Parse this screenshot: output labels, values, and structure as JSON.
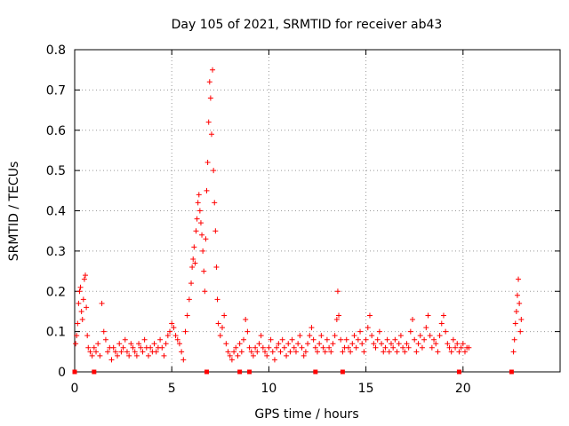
{
  "chart_data": {
    "type": "scatter",
    "title": "Day 105 of 2021, SRMTID for receiver ab43",
    "xlabel": "GPS time / hours",
    "ylabel": "SRMTID / TECUs",
    "xlim": [
      0,
      25
    ],
    "ylim": [
      0,
      0.8
    ],
    "grid": true,
    "marker": "+",
    "color": "#ff0000",
    "x_ticks": [
      0,
      5,
      10,
      15,
      20
    ],
    "x_tick_labels": [
      "0",
      "5",
      "10",
      "15",
      "20"
    ],
    "y_ticks": [
      0,
      0.1,
      0.2,
      0.3,
      0.4,
      0.5,
      0.6,
      0.7,
      0.8
    ],
    "y_tick_labels": [
      "0",
      "0.1",
      "0.2",
      "0.3",
      "0.4",
      "0.5",
      "0.6",
      "0.7",
      "0.8"
    ],
    "zero_markers_x": [
      0.0,
      1.0,
      6.8,
      8.5,
      9.0,
      12.4,
      13.8,
      19.8,
      22.5
    ],
    "series": [
      {
        "name": "SRMTID",
        "points": [
          [
            0.05,
            0.07
          ],
          [
            0.1,
            0.09
          ],
          [
            0.15,
            0.12
          ],
          [
            0.2,
            0.17
          ],
          [
            0.25,
            0.2
          ],
          [
            0.3,
            0.21
          ],
          [
            0.35,
            0.15
          ],
          [
            0.4,
            0.13
          ],
          [
            0.45,
            0.18
          ],
          [
            0.5,
            0.23
          ],
          [
            0.55,
            0.24
          ],
          [
            0.6,
            0.16
          ],
          [
            0.65,
            0.09
          ],
          [
            0.7,
            0.06
          ],
          [
            0.8,
            0.05
          ],
          [
            0.9,
            0.04
          ],
          [
            1.0,
            0.06
          ],
          [
            1.1,
            0.05
          ],
          [
            1.2,
            0.07
          ],
          [
            1.3,
            0.04
          ],
          [
            1.4,
            0.17
          ],
          [
            1.5,
            0.1
          ],
          [
            1.6,
            0.08
          ],
          [
            1.7,
            0.05
          ],
          [
            1.8,
            0.06
          ],
          [
            1.9,
            0.03
          ],
          [
            2.0,
            0.06
          ],
          [
            2.1,
            0.05
          ],
          [
            2.2,
            0.04
          ],
          [
            2.3,
            0.07
          ],
          [
            2.4,
            0.05
          ],
          [
            2.5,
            0.06
          ],
          [
            2.6,
            0.08
          ],
          [
            2.7,
            0.05
          ],
          [
            2.8,
            0.04
          ],
          [
            2.9,
            0.07
          ],
          [
            3.0,
            0.06
          ],
          [
            3.1,
            0.05
          ],
          [
            3.2,
            0.04
          ],
          [
            3.3,
            0.07
          ],
          [
            3.4,
            0.06
          ],
          [
            3.5,
            0.05
          ],
          [
            3.6,
            0.08
          ],
          [
            3.7,
            0.06
          ],
          [
            3.8,
            0.04
          ],
          [
            3.9,
            0.06
          ],
          [
            4.0,
            0.05
          ],
          [
            4.1,
            0.07
          ],
          [
            4.2,
            0.05
          ],
          [
            4.3,
            0.06
          ],
          [
            4.4,
            0.08
          ],
          [
            4.5,
            0.06
          ],
          [
            4.6,
            0.04
          ],
          [
            4.7,
            0.07
          ],
          [
            4.8,
            0.09
          ],
          [
            4.9,
            0.1
          ],
          [
            5.0,
            0.12
          ],
          [
            5.1,
            0.11
          ],
          [
            5.2,
            0.09
          ],
          [
            5.3,
            0.08
          ],
          [
            5.4,
            0.07
          ],
          [
            5.5,
            0.05
          ],
          [
            5.6,
            0.03
          ],
          [
            5.7,
            0.1
          ],
          [
            5.8,
            0.14
          ],
          [
            5.9,
            0.18
          ],
          [
            6.0,
            0.22
          ],
          [
            6.05,
            0.26
          ],
          [
            6.1,
            0.28
          ],
          [
            6.15,
            0.31
          ],
          [
            6.2,
            0.27
          ],
          [
            6.25,
            0.35
          ],
          [
            6.3,
            0.38
          ],
          [
            6.35,
            0.42
          ],
          [
            6.4,
            0.44
          ],
          [
            6.45,
            0.4
          ],
          [
            6.5,
            0.37
          ],
          [
            6.55,
            0.34
          ],
          [
            6.6,
            0.3
          ],
          [
            6.65,
            0.25
          ],
          [
            6.7,
            0.2
          ],
          [
            6.75,
            0.33
          ],
          [
            6.8,
            0.45
          ],
          [
            6.85,
            0.52
          ],
          [
            6.9,
            0.62
          ],
          [
            6.95,
            0.72
          ],
          [
            7.0,
            0.68
          ],
          [
            7.05,
            0.59
          ],
          [
            7.1,
            0.75
          ],
          [
            7.15,
            0.5
          ],
          [
            7.2,
            0.42
          ],
          [
            7.25,
            0.35
          ],
          [
            7.3,
            0.26
          ],
          [
            7.35,
            0.18
          ],
          [
            7.4,
            0.12
          ],
          [
            7.5,
            0.09
          ],
          [
            7.6,
            0.11
          ],
          [
            7.7,
            0.14
          ],
          [
            7.8,
            0.07
          ],
          [
            7.9,
            0.05
          ],
          [
            8.0,
            0.04
          ],
          [
            8.1,
            0.03
          ],
          [
            8.2,
            0.05
          ],
          [
            8.3,
            0.06
          ],
          [
            8.4,
            0.04
          ],
          [
            8.5,
            0.07
          ],
          [
            8.6,
            0.05
          ],
          [
            8.7,
            0.08
          ],
          [
            8.8,
            0.13
          ],
          [
            8.9,
            0.1
          ],
          [
            9.0,
            0.06
          ],
          [
            9.1,
            0.05
          ],
          [
            9.2,
            0.04
          ],
          [
            9.3,
            0.06
          ],
          [
            9.4,
            0.05
          ],
          [
            9.5,
            0.07
          ],
          [
            9.6,
            0.09
          ],
          [
            9.7,
            0.06
          ],
          [
            9.8,
            0.05
          ],
          [
            9.9,
            0.04
          ],
          [
            10.0,
            0.06
          ],
          [
            10.1,
            0.08
          ],
          [
            10.2,
            0.05
          ],
          [
            10.3,
            0.03
          ],
          [
            10.4,
            0.06
          ],
          [
            10.5,
            0.07
          ],
          [
            10.6,
            0.05
          ],
          [
            10.7,
            0.08
          ],
          [
            10.8,
            0.06
          ],
          [
            10.9,
            0.04
          ],
          [
            11.0,
            0.07
          ],
          [
            11.1,
            0.05
          ],
          [
            11.2,
            0.08
          ],
          [
            11.3,
            0.06
          ],
          [
            11.4,
            0.05
          ],
          [
            11.5,
            0.07
          ],
          [
            11.6,
            0.09
          ],
          [
            11.7,
            0.06
          ],
          [
            11.8,
            0.04
          ],
          [
            11.9,
            0.05
          ],
          [
            12.0,
            0.07
          ],
          [
            12.1,
            0.09
          ],
          [
            12.2,
            0.11
          ],
          [
            12.3,
            0.08
          ],
          [
            12.4,
            0.06
          ],
          [
            12.5,
            0.05
          ],
          [
            12.6,
            0.07
          ],
          [
            12.7,
            0.09
          ],
          [
            12.8,
            0.06
          ],
          [
            12.9,
            0.05
          ],
          [
            13.0,
            0.08
          ],
          [
            13.1,
            0.06
          ],
          [
            13.2,
            0.05
          ],
          [
            13.3,
            0.07
          ],
          [
            13.4,
            0.09
          ],
          [
            13.5,
            0.13
          ],
          [
            13.55,
            0.2
          ],
          [
            13.6,
            0.14
          ],
          [
            13.7,
            0.08
          ],
          [
            13.8,
            0.05
          ],
          [
            13.9,
            0.06
          ],
          [
            14.0,
            0.08
          ],
          [
            14.1,
            0.06
          ],
          [
            14.2,
            0.05
          ],
          [
            14.3,
            0.07
          ],
          [
            14.4,
            0.09
          ],
          [
            14.5,
            0.06
          ],
          [
            14.6,
            0.08
          ],
          [
            14.7,
            0.1
          ],
          [
            14.8,
            0.07
          ],
          [
            14.9,
            0.05
          ],
          [
            15.0,
            0.08
          ],
          [
            15.1,
            0.11
          ],
          [
            15.2,
            0.14
          ],
          [
            15.3,
            0.09
          ],
          [
            15.4,
            0.07
          ],
          [
            15.5,
            0.06
          ],
          [
            15.6,
            0.08
          ],
          [
            15.7,
            0.1
          ],
          [
            15.8,
            0.07
          ],
          [
            15.9,
            0.05
          ],
          [
            16.0,
            0.06
          ],
          [
            16.1,
            0.08
          ],
          [
            16.2,
            0.05
          ],
          [
            16.3,
            0.07
          ],
          [
            16.4,
            0.06
          ],
          [
            16.5,
            0.08
          ],
          [
            16.6,
            0.05
          ],
          [
            16.7,
            0.07
          ],
          [
            16.8,
            0.09
          ],
          [
            16.9,
            0.06
          ],
          [
            17.0,
            0.05
          ],
          [
            17.1,
            0.07
          ],
          [
            17.2,
            0.06
          ],
          [
            17.3,
            0.1
          ],
          [
            17.4,
            0.13
          ],
          [
            17.5,
            0.08
          ],
          [
            17.6,
            0.05
          ],
          [
            17.7,
            0.07
          ],
          [
            17.8,
            0.09
          ],
          [
            17.9,
            0.06
          ],
          [
            18.0,
            0.08
          ],
          [
            18.1,
            0.11
          ],
          [
            18.2,
            0.14
          ],
          [
            18.3,
            0.09
          ],
          [
            18.4,
            0.06
          ],
          [
            18.5,
            0.08
          ],
          [
            18.6,
            0.07
          ],
          [
            18.7,
            0.05
          ],
          [
            18.8,
            0.09
          ],
          [
            18.9,
            0.12
          ],
          [
            19.0,
            0.14
          ],
          [
            19.1,
            0.1
          ],
          [
            19.2,
            0.07
          ],
          [
            19.3,
            0.06
          ],
          [
            19.4,
            0.05
          ],
          [
            19.5,
            0.08
          ],
          [
            19.6,
            0.06
          ],
          [
            19.7,
            0.07
          ],
          [
            19.8,
            0.05
          ],
          [
            19.9,
            0.06
          ],
          [
            20.0,
            0.07
          ],
          [
            20.1,
            0.05
          ],
          [
            20.2,
            0.06
          ],
          [
            20.3,
            0.06
          ],
          [
            22.6,
            0.05
          ],
          [
            22.65,
            0.08
          ],
          [
            22.7,
            0.12
          ],
          [
            22.75,
            0.15
          ],
          [
            22.8,
            0.19
          ],
          [
            22.85,
            0.23
          ],
          [
            22.9,
            0.17
          ],
          [
            22.95,
            0.1
          ],
          [
            23.0,
            0.13
          ]
        ]
      }
    ]
  }
}
